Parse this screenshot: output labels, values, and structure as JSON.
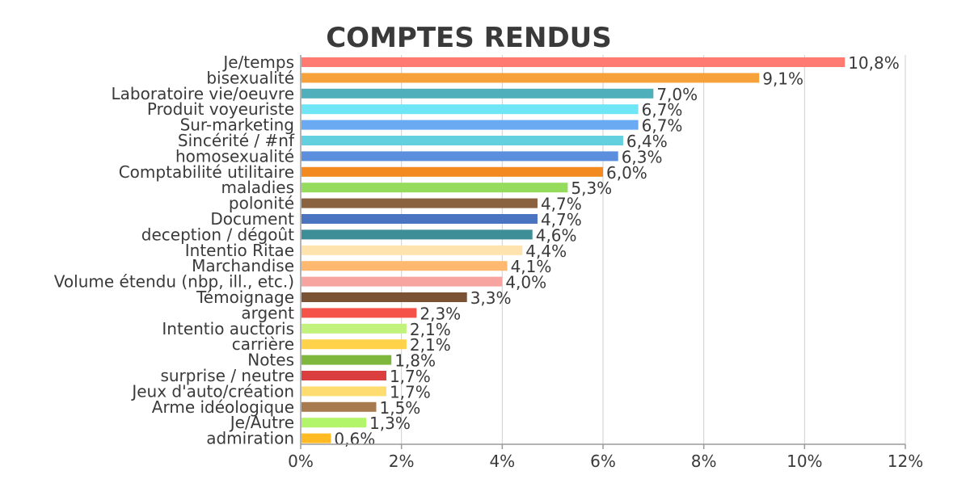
{
  "chart_data": {
    "type": "bar",
    "orientation": "horizontal",
    "title": "COMPTES RENDUS",
    "xlabel": "",
    "ylabel": "",
    "xlim": [
      0,
      12
    ],
    "ticks": [
      0,
      2,
      4,
      6,
      8,
      10,
      12
    ],
    "tick_labels": [
      "0%",
      "2%",
      "4%",
      "6%",
      "8%",
      "10%",
      "12%"
    ],
    "grid": true,
    "legend": "none",
    "categories": [
      "Je/temps",
      "bisexualité",
      "Laboratoire vie/oeuvre",
      "Produit voyeuriste",
      "Sur-marketing",
      "Sincérité / #nf",
      "homosexualité",
      "Comptabilité utilitaire",
      "maladies",
      "polonité",
      "Document",
      "deception / dégoût",
      "Intentio Ritae",
      "Marchandise",
      "Volume étendu (nbp, ill., etc.)",
      "Témoignage",
      "argent",
      "Intentio auctoris",
      "carrière",
      "Notes",
      "surprise / neutre",
      "Jeux d'auto/création",
      "Arme idéologique",
      "Je/Autre",
      "admiration"
    ],
    "values": [
      10.8,
      9.1,
      7.0,
      6.7,
      6.7,
      6.4,
      6.3,
      6.0,
      5.3,
      4.7,
      4.7,
      4.6,
      4.4,
      4.1,
      4.0,
      3.3,
      2.3,
      2.1,
      2.1,
      1.8,
      1.7,
      1.7,
      1.5,
      1.3,
      0.6
    ],
    "value_labels": [
      "10,8%",
      "9,1%",
      "7,0%",
      "6,7%",
      "6,7%",
      "6,4%",
      "6,3%",
      "6,0%",
      "5,3%",
      "4,7%",
      "4,7%",
      "4,6%",
      "4,4%",
      "4,1%",
      "4,0%",
      "3,3%",
      "2,3%",
      "2,1%",
      "2,1%",
      "1,8%",
      "1,7%",
      "1,7%",
      "1,5%",
      "1,3%",
      "0,6%"
    ],
    "colors": [
      "#ff7b72",
      "#f7a13a",
      "#4fb0bb",
      "#6fe6f5",
      "#6aaaf2",
      "#62d0de",
      "#5b8edd",
      "#f28a1f",
      "#96dc5c",
      "#8a6240",
      "#4a73c0",
      "#3e8e98",
      "#ffe3ae",
      "#ffb870",
      "#f7a4a0",
      "#7b5234",
      "#f5524a",
      "#c0f27c",
      "#ffd24a",
      "#7fb63c",
      "#da3e3e",
      "#ffdc70",
      "#a87a50",
      "#b3f56a",
      "#ffba24"
    ]
  }
}
